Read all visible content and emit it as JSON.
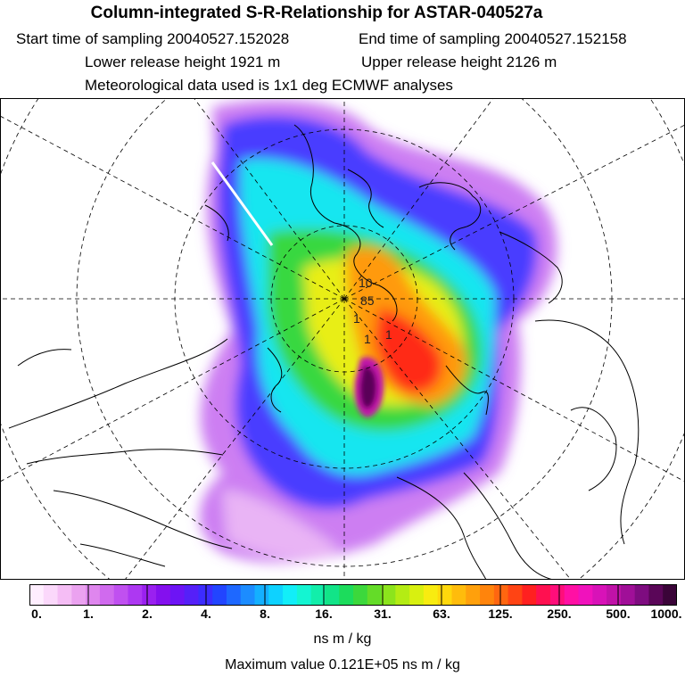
{
  "header": {
    "title": "Column-integrated S-R-Relationship for ASTAR-040527a",
    "start_time": "Start time of sampling 20040527.152028",
    "end_time": "End time of sampling 20040527.152158",
    "lower_height": "Lower release height 1921 m",
    "upper_height": "Upper release height 2126 m",
    "met_data": "Meteorological data used is 1x1 deg ECMWF analyses"
  },
  "map": {
    "projection": "polar stereographic, north pole",
    "contour_labels": [
      "1",
      "1",
      "1",
      "10",
      "85"
    ]
  },
  "colorbar": {
    "tick_labels": [
      "0.",
      "1.",
      "2.",
      "4.",
      "8.",
      "16.",
      "31.",
      "63.",
      "125.",
      "250.",
      "500.",
      "1000."
    ],
    "units": "ns m / kg",
    "colors": [
      "#ffeeff",
      "#fbd8fb",
      "#f5bdf5",
      "#eba2f0",
      "#df86ee",
      "#d06aee",
      "#c050f0",
      "#ad38f2",
      "#9a20f0",
      "#8410ee",
      "#6d14f5",
      "#5520f8",
      "#3c2cff",
      "#2245ff",
      "#1e68ff",
      "#1c8cff",
      "#14b0ff",
      "#0ed2ff",
      "#12eef8",
      "#14f5d2",
      "#12eeaa",
      "#12e488",
      "#1cdc5c",
      "#3cd83c",
      "#64dc28",
      "#8ce41c",
      "#b4ec14",
      "#d8f010",
      "#f8ec10",
      "#ffd80c",
      "#ffbc0c",
      "#ffa00c",
      "#ff840c",
      "#ff6610",
      "#ff4414",
      "#ff2020",
      "#ff1050",
      "#ff0e7a",
      "#ff10a4",
      "#f012bc",
      "#d812b8",
      "#c012a8",
      "#a00f98",
      "#7e0c80",
      "#5a0658",
      "#3a0438"
    ]
  },
  "footer": {
    "maximum": "Maximum value  0.121E+05 ns m / kg"
  }
}
